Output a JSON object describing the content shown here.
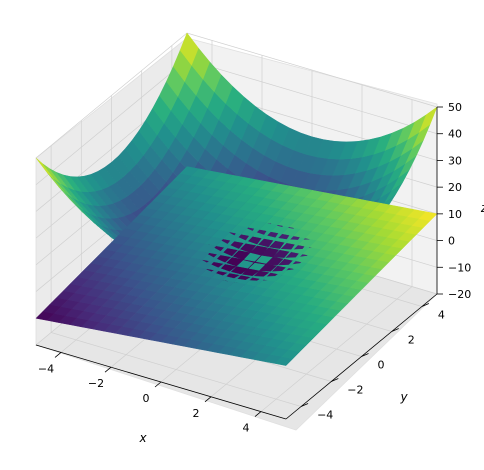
{
  "chart_data": {
    "type": "surface3d",
    "title": "",
    "xlabel": "x",
    "ylabel": "y",
    "zlabel": "z",
    "xlim": [
      -5,
      5
    ],
    "ylim": [
      -5,
      5
    ],
    "zlim": [
      -20,
      50
    ],
    "x_ticks": [
      "−4",
      "−2",
      "0",
      "2",
      "4"
    ],
    "y_ticks": [
      "−4",
      "−2",
      "0",
      "2",
      "4"
    ],
    "z_ticks": [
      "−20",
      "−10",
      "0",
      "10",
      "20",
      "30",
      "40",
      "50"
    ],
    "colormap": "viridis",
    "grid": true,
    "surfaces": [
      {
        "expression": "x^2 + y^2",
        "z_range": [
          0,
          50
        ]
      },
      {
        "expression": "x + y",
        "z_range": [
          -10,
          10
        ]
      }
    ]
  }
}
